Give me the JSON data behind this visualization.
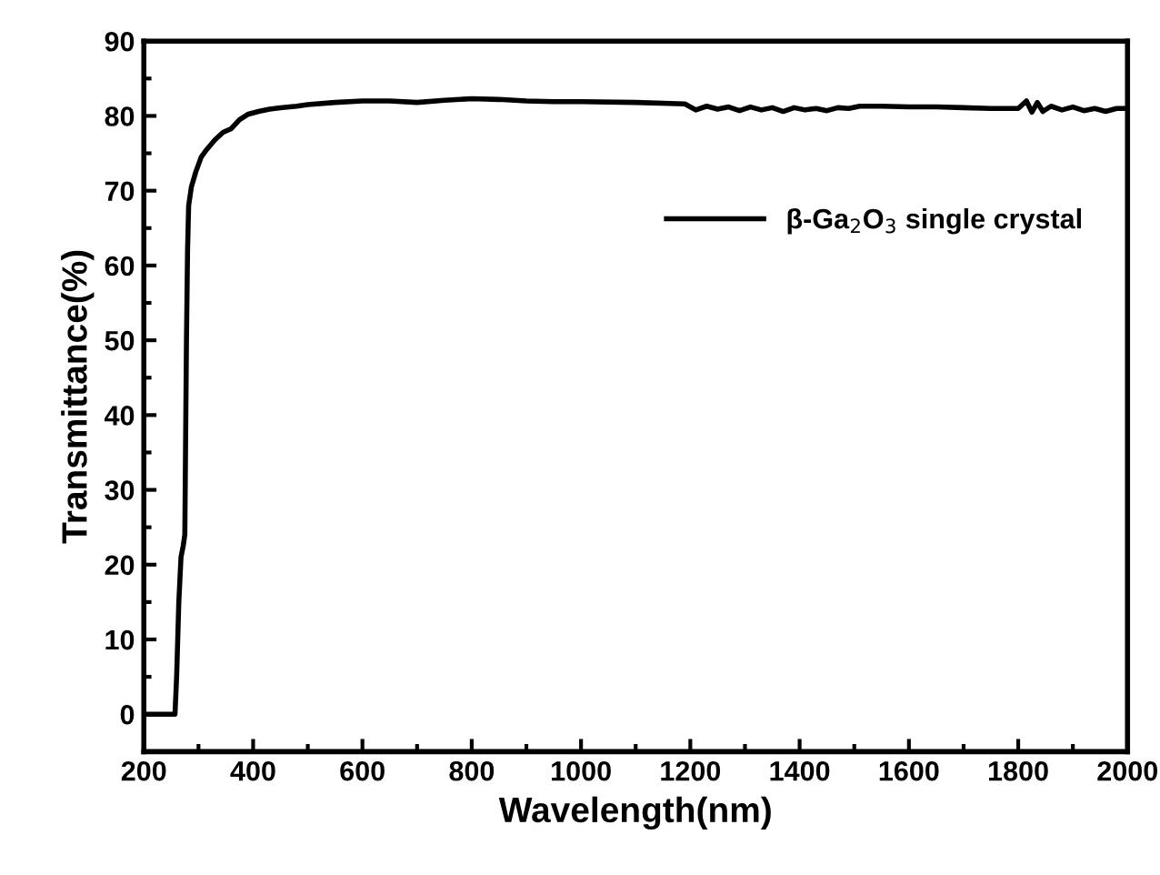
{
  "chart_data": {
    "type": "line",
    "xlabel": "Wavelength(nm)",
    "ylabel": "Transmittance(%)",
    "xlim": [
      200,
      2000
    ],
    "xticks": [
      200,
      400,
      600,
      800,
      1000,
      1200,
      1400,
      1600,
      1800,
      2000
    ],
    "ylim": [
      -5,
      90
    ],
    "yticks": [
      0,
      10,
      20,
      30,
      40,
      50,
      60,
      70,
      80,
      90
    ],
    "grid": false,
    "legend": "top right",
    "marker": "none",
    "line_style": "solid",
    "series": [
      {
        "name": "β-Ga$_{2}$O$_{3}$ single crystal",
        "color": "#000000",
        "x": [
          200,
          230,
          257,
          260,
          264,
          268,
          272,
          275,
          278,
          280,
          282,
          287,
          295,
          305,
          315,
          330,
          345,
          360,
          375,
          390,
          410,
          430,
          450,
          480,
          500,
          550,
          600,
          650,
          700,
          750,
          800,
          850,
          900,
          950,
          1000,
          1100,
          1190,
          1210,
          1230,
          1250,
          1270,
          1290,
          1310,
          1330,
          1350,
          1370,
          1390,
          1410,
          1430,
          1450,
          1470,
          1490,
          1510,
          1550,
          1600,
          1650,
          1700,
          1750,
          1800,
          1815,
          1825,
          1835,
          1845,
          1860,
          1880,
          1900,
          1920,
          1940,
          1960,
          1980,
          2000
        ],
        "values": [
          0,
          0,
          0,
          5,
          15,
          21,
          22.5,
          24,
          50,
          62,
          68,
          70.5,
          72.5,
          74.5,
          75.5,
          76.8,
          77.8,
          78.3,
          79.5,
          80.2,
          80.6,
          80.9,
          81.1,
          81.3,
          81.5,
          81.8,
          82,
          82,
          81.8,
          82.1,
          82.3,
          82.2,
          82,
          81.9,
          81.9,
          81.8,
          81.6,
          80.8,
          81.3,
          80.9,
          81.2,
          80.7,
          81.2,
          80.8,
          81.1,
          80.6,
          81.1,
          80.8,
          81.0,
          80.7,
          81.1,
          81.0,
          81.3,
          81.3,
          81.2,
          81.2,
          81.1,
          81.0,
          81.0,
          82.0,
          80.5,
          81.8,
          80.6,
          81.3,
          80.8,
          81.2,
          80.7,
          81.0,
          80.6,
          81.0,
          81.0
        ]
      }
    ]
  }
}
